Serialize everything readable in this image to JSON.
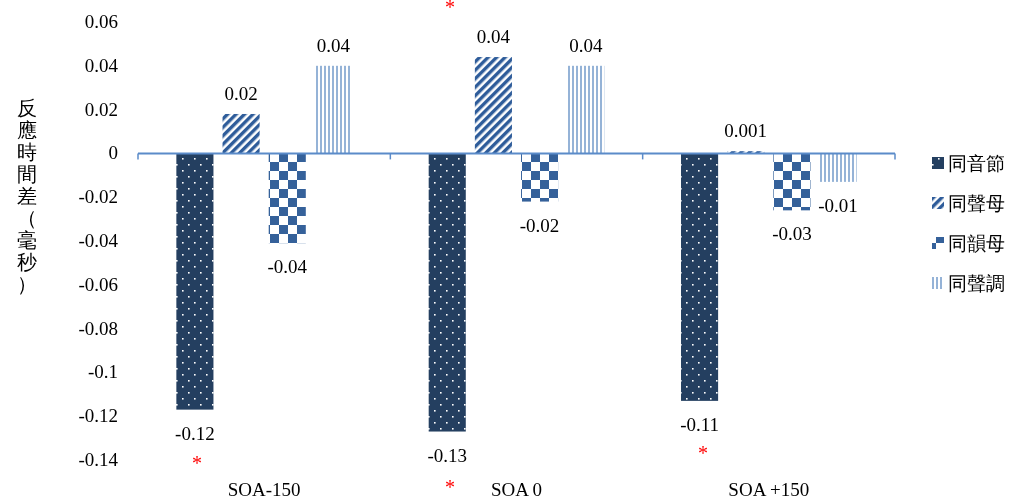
{
  "chart_data": {
    "type": "bar",
    "ylabel": "反應時間差（毫秒）",
    "categories": [
      "SOA-150",
      "SOA 0",
      "SOA +150"
    ],
    "series": [
      {
        "name": "同音節",
        "color": "#243f60",
        "values": [
          -0.117,
          -0.127,
          -0.113
        ],
        "value_labels": [
          "-0.12",
          "-0.13",
          "-0.11"
        ]
      },
      {
        "name": "同聲母",
        "color": "#2e5c9a",
        "values": [
          0.018,
          0.044,
          0.001
        ],
        "value_labels": [
          "0.02",
          "0.04",
          "0.001"
        ]
      },
      {
        "name": "同韻母",
        "color": "#35619a",
        "values": [
          -0.041,
          -0.022,
          -0.026
        ],
        "value_labels": [
          "-0.04",
          "-0.02",
          "-0.03"
        ]
      },
      {
        "name": "同聲調",
        "color": "#95b3d7",
        "values": [
          0.04,
          0.04,
          -0.013
        ],
        "value_labels": [
          "0.04",
          "0.04",
          "-0.01"
        ]
      }
    ],
    "ylim": [
      -0.14,
      0.06
    ],
    "yticks": [
      0.06,
      0.04,
      0.02,
      0,
      -0.02,
      -0.04,
      -0.06,
      -0.08,
      -0.1,
      -0.12,
      -0.14
    ],
    "grid": false,
    "legend": "right",
    "ref_lines": [
      {
        "axis": "y",
        "value": 0,
        "color": "#5b8bc9"
      }
    ],
    "annotations": [
      "*",
      "*",
      "*",
      "*"
    ]
  }
}
